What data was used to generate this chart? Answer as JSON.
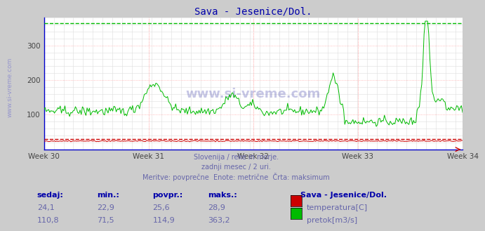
{
  "title": "Sava - Jesenice/Dol.",
  "title_color": "#0000aa",
  "bg_color": "#cccccc",
  "plot_bg_color": "#ffffff",
  "grid_color_major": "#ffaaaa",
  "grid_color_minor": "#dddddd",
  "ylim": [
    0,
    380
  ],
  "week_labels": [
    "Week 30",
    "Week 31",
    "Week 32",
    "Week 33",
    "Week 34"
  ],
  "n_points": 360,
  "temp_color": "#cc0000",
  "flow_color": "#00bb00",
  "max_flow": 363.2,
  "max_temp": 28.9,
  "subtitle_lines": [
    "Slovenija / reke in morje.",
    "zadnji mesec / 2 uri.",
    "Meritve: povprečne  Enote: metrične  Črta: maksimum"
  ],
  "subtitle_color": "#6666aa",
  "table_headers": [
    "sedaj:",
    "min.:",
    "povpr.:",
    "maks.:"
  ],
  "table_header_color": "#0000aa",
  "table_values_temp": [
    "24,1",
    "22,9",
    "25,6",
    "28,9"
  ],
  "table_values_flow": [
    "110,8",
    "71,5",
    "114,9",
    "363,2"
  ],
  "table_value_color": "#6666aa",
  "station_label": "Sava - Jesenice/Dol.",
  "legend_temp": "temperatura[C]",
  "legend_flow": "pretok[m3/s]",
  "watermark": "www.si-vreme.com",
  "watermark_color": "#4444aa",
  "left_watermark_color": "#8888cc"
}
